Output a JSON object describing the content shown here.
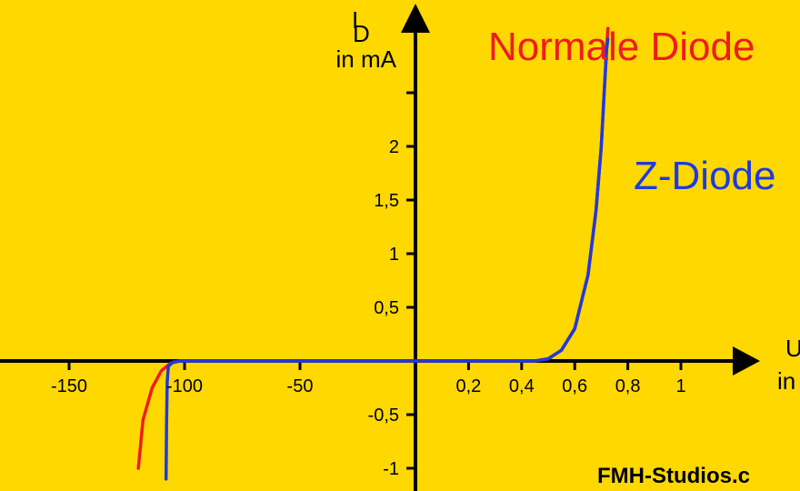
{
  "chart_data": {
    "type": "line",
    "title": "",
    "background_color": "#FFD800",
    "y_axis": {
      "label_symbol": "I",
      "label_subscript": "D",
      "label_unit": "in mA",
      "ticks": [
        {
          "value": 2,
          "label": "2"
        },
        {
          "value": 1.5,
          "label": "1,5"
        },
        {
          "value": 1,
          "label": "1"
        },
        {
          "value": 0.5,
          "label": "0,5"
        },
        {
          "value": -0.5,
          "label": "-0,5"
        },
        {
          "value": -1,
          "label": "-1"
        }
      ],
      "range": [
        -1.12,
        3.3
      ]
    },
    "x_axis": {
      "label_symbol": "U",
      "label_unit": "in",
      "scale": "broken: linear in V for negative values (-150 to 0), stretched linear for positive values (0 to 1.2 V)",
      "ticks_negative": [
        {
          "value": -150,
          "label": "-150"
        },
        {
          "value": -100,
          "label": "-100"
        },
        {
          "value": -50,
          "label": "-50"
        }
      ],
      "ticks_positive": [
        {
          "value": 0.2,
          "label": "0,2"
        },
        {
          "value": 0.4,
          "label": "0,4"
        },
        {
          "value": 0.6,
          "label": "0,6"
        },
        {
          "value": 0.8,
          "label": "0,8"
        },
        {
          "value": 1,
          "label": "1"
        },
        {
          "value": 1.2,
          "label": ""
        }
      ]
    },
    "series": [
      {
        "name": "Normale Diode",
        "color": "#EE1C1C",
        "points": [
          [
            -120,
            -1.0
          ],
          [
            -118,
            -0.55
          ],
          [
            -114,
            -0.25
          ],
          [
            -110,
            -0.09
          ],
          [
            -106,
            -0.02
          ],
          [
            -102,
            0.0
          ],
          [
            0,
            0.0
          ],
          [
            0.45,
            0.0
          ],
          [
            0.5,
            0.02
          ],
          [
            0.55,
            0.1
          ],
          [
            0.6,
            0.3
          ],
          [
            0.65,
            0.8
          ],
          [
            0.68,
            1.4
          ],
          [
            0.7,
            2.0
          ],
          [
            0.72,
            2.9
          ],
          [
            0.725,
            3.1
          ]
        ]
      },
      {
        "name": "Z-Diode",
        "color": "#1E3AE0",
        "points": [
          [
            -108,
            -1.1
          ],
          [
            -107.8,
            -0.6
          ],
          [
            -107.5,
            -0.2
          ],
          [
            -107,
            -0.05
          ],
          [
            -105,
            -0.01
          ],
          [
            -102,
            0.0
          ],
          [
            0,
            0.0
          ],
          [
            0.45,
            0.0
          ],
          [
            0.5,
            0.02
          ],
          [
            0.55,
            0.1
          ],
          [
            0.6,
            0.3
          ],
          [
            0.65,
            0.8
          ],
          [
            0.68,
            1.4
          ],
          [
            0.7,
            2.0
          ],
          [
            0.72,
            2.9
          ],
          [
            0.725,
            3.0
          ]
        ]
      }
    ],
    "legend": [
      {
        "text": "Normale Diode",
        "color": "#EE1C1C"
      },
      {
        "text": "Z-Diode",
        "color": "#1E3AE0"
      }
    ]
  },
  "credit": "FMH-Studios.c"
}
